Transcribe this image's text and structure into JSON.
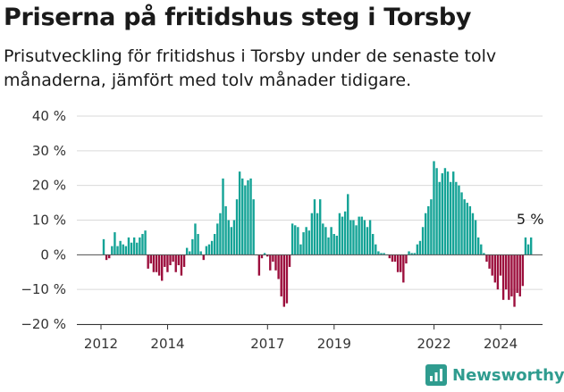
{
  "header": {
    "title": "Priserna på fritidshus steg i Torsby",
    "subtitle": "Prisutveckling för fritidshus i Torsby under de senaste tolv månaderna, jämfört med tolv månader tidigare."
  },
  "brand": {
    "name": "Newsworthy",
    "icon": "newsworthy-logo-icon"
  },
  "colors": {
    "positive": "#14a396",
    "negative": "#9c0f3d",
    "grid": "#d9d9d9",
    "axis": "#333333"
  },
  "chart_data": {
    "type": "bar",
    "x_start": "2012-01",
    "interval": "month",
    "ylim": [
      -20,
      40
    ],
    "yticks": [
      -20,
      -10,
      0,
      10,
      20,
      30,
      40
    ],
    "ytick_labels": [
      "−20 %",
      "−10 %",
      "0 %",
      "10 %",
      "20 %",
      "30 %",
      "40 %"
    ],
    "xtick_labels": [
      "2012",
      "2014",
      "2017",
      "2019",
      "2022",
      "2024"
    ],
    "xtick_positions": [
      "2012-01",
      "2014-01",
      "2017-01",
      "2019-01",
      "2022-01",
      "2024-01"
    ],
    "grid": true,
    "annotation": {
      "text": "5 %",
      "at": "last"
    },
    "values": [
      4.5,
      -1.5,
      -1,
      2.5,
      6.5,
      2.5,
      4,
      3,
      2.5,
      5,
      3.5,
      5,
      3.5,
      5,
      6,
      7,
      -4,
      -2.5,
      -5,
      -5,
      -6,
      -7.5,
      -3.5,
      -5,
      -3,
      -2,
      -5,
      -3,
      -6,
      -3.5,
      2,
      1,
      4.5,
      9,
      6,
      1,
      -1.5,
      2.5,
      3,
      4,
      6,
      9,
      12,
      22,
      14,
      10,
      8,
      10,
      16,
      24,
      22,
      20,
      21.5,
      22,
      16,
      0,
      -6,
      -1,
      0.5,
      -0.5,
      -4.5,
      -2,
      -4.5,
      -7,
      -12,
      -15,
      -14,
      -3.5,
      9,
      8.5,
      8,
      3,
      6.5,
      8,
      7,
      12,
      16,
      12,
      16,
      9,
      8,
      5,
      8,
      6,
      5.5,
      12,
      11,
      12.5,
      17.5,
      10,
      10,
      8.5,
      11,
      11,
      10,
      8,
      10,
      6,
      3,
      1,
      0.5,
      0.5,
      0,
      -1,
      -2,
      -2,
      -5,
      -5,
      -8,
      -2.5,
      1,
      0.5,
      0.5,
      3,
      4,
      8,
      12,
      14,
      16,
      27,
      25,
      21,
      23.5,
      25,
      24,
      21,
      24,
      21,
      20,
      18,
      16,
      15,
      14,
      12,
      10,
      5,
      3,
      0.5,
      -2,
      -4,
      -6,
      -8,
      -10,
      -6,
      -13,
      -10,
      -13,
      -12,
      -15,
      -11,
      -12,
      -9,
      5,
      3,
      5
    ]
  }
}
